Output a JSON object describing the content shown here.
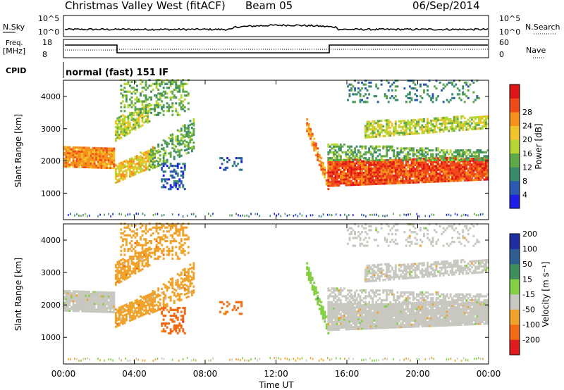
{
  "header": {
    "title": "Christmas Valley West (fitACF)",
    "beam": "Beam 05",
    "date": "06/Sep/2014"
  },
  "nsky_panel": {
    "label": "N.Sky",
    "yticks_left": [
      "10^5",
      "10^0"
    ],
    "right_label": "N.Search",
    "yticks_right": [
      "10^5",
      "10^0"
    ]
  },
  "freq_panel": {
    "label_line1": "Freq.",
    "label_line2": "[MHz]",
    "yticks_left": [
      "18",
      "8"
    ],
    "right_label": "Nave",
    "yticks_right": [
      "60",
      "0"
    ]
  },
  "cpid_panel": {
    "label": "CPID",
    "text": "normal (fast) 151 IF"
  },
  "chart_data": [
    {
      "type": "heatmap",
      "name": "power",
      "ylabel": "Slant Range [km]",
      "xlabel": "Time UT",
      "yticks": [
        1000,
        2000,
        3000,
        4000
      ],
      "ylim": [
        180,
        4500
      ],
      "colorbar_label": "Power [dB]",
      "colorbar_ticks": [
        "4",
        "8",
        "12",
        "16",
        "20",
        "24",
        "28"
      ],
      "colorbar_colors": [
        "#1e1ee8",
        "#2a5bb0",
        "#3a8a6c",
        "#5fa848",
        "#b8d633",
        "#f2c42c",
        "#f6921c",
        "#f04a1b",
        "#e01616"
      ]
    },
    {
      "type": "heatmap",
      "name": "velocity",
      "ylabel": "Slant Range [km]",
      "xlabel": "Time UT",
      "yticks": [
        1000,
        2000,
        3000,
        4000
      ],
      "ylim": [
        180,
        4500
      ],
      "colorbar_label": "Velocity [m s⁻¹]",
      "colorbar_ticks": [
        "200",
        "100",
        "50",
        "15",
        "-15",
        "-50",
        "-100",
        "-200"
      ],
      "colorbar_colors": [
        "#1e2ea0",
        "#2f5e93",
        "#3e8f5c",
        "#84cf43",
        "#c8c8c0",
        "#f0a22a",
        "#f26a14",
        "#e21c1c"
      ]
    }
  ],
  "xaxis": {
    "label": "Time UT",
    "ticks": [
      "00:00",
      "04:00",
      "08:00",
      "12:00",
      "16:00",
      "20:00",
      "00:00"
    ]
  }
}
